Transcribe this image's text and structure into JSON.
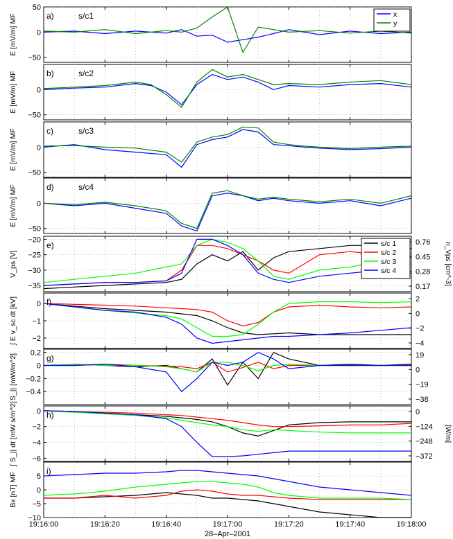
{
  "figure": {
    "date_label": "28–Apr–2001",
    "x_ticks": [
      "19:16:00",
      "19:16:20",
      "19:16:40",
      "19:17:00",
      "19:17:20",
      "19:17:40",
      "19:18:00"
    ]
  },
  "colors": {
    "x": "#0000ff",
    "y": "#008000",
    "sc1": "#000000",
    "sc2": "#ff0000",
    "sc3": "#00ff00",
    "sc4": "#0000ff"
  },
  "chart_data": [
    {
      "type": "line",
      "panel": "a",
      "letter": "a)",
      "sc_label": "s/c1",
      "ylabel": "E [mV/m] MF",
      "ylim": [
        -60,
        50
      ],
      "y_ticks": [
        -50,
        0,
        50
      ],
      "legend": [
        "x",
        "y"
      ],
      "x": [
        0,
        10,
        20,
        30,
        40,
        45,
        50,
        55,
        60,
        65,
        70,
        75,
        80,
        90,
        100,
        110,
        120
      ],
      "series": [
        {
          "name": "x",
          "values": [
            0,
            2,
            -3,
            2,
            -2,
            5,
            -8,
            -6,
            -20,
            -15,
            -10,
            -3,
            5,
            -5,
            2,
            -3,
            0
          ]
        },
        {
          "name": "y",
          "values": [
            2,
            0,
            5,
            -3,
            3,
            0,
            8,
            30,
            50,
            -40,
            10,
            5,
            0,
            3,
            -2,
            2,
            -2
          ]
        }
      ]
    },
    {
      "type": "line",
      "panel": "b",
      "letter": "b)",
      "sc_label": "s/c2",
      "ylabel": "E [mV/m] MF",
      "ylim": [
        -60,
        50
      ],
      "y_ticks": [
        -50,
        0
      ],
      "x": [
        0,
        10,
        20,
        30,
        35,
        40,
        45,
        50,
        55,
        60,
        65,
        70,
        75,
        80,
        90,
        100,
        110,
        120
      ],
      "series": [
        {
          "name": "x",
          "values": [
            0,
            3,
            5,
            12,
            8,
            -5,
            -30,
            10,
            30,
            20,
            25,
            15,
            0,
            8,
            5,
            10,
            12,
            5
          ]
        },
        {
          "name": "y",
          "values": [
            2,
            5,
            8,
            15,
            10,
            -10,
            -35,
            15,
            40,
            25,
            30,
            20,
            10,
            12,
            10,
            15,
            18,
            10
          ]
        }
      ]
    },
    {
      "type": "line",
      "panel": "c",
      "letter": "c)",
      "sc_label": "s/c3",
      "ylabel": "E [mV/m] MF",
      "ylim": [
        -60,
        50
      ],
      "y_ticks": [
        -50,
        0
      ],
      "x": [
        0,
        10,
        20,
        30,
        40,
        45,
        50,
        55,
        60,
        65,
        70,
        75,
        80,
        85,
        90,
        100,
        110,
        120
      ],
      "series": [
        {
          "name": "x",
          "values": [
            0,
            5,
            -5,
            -10,
            -15,
            -40,
            5,
            15,
            20,
            35,
            30,
            5,
            3,
            0,
            -2,
            -5,
            -3,
            0
          ]
        },
        {
          "name": "y",
          "values": [
            2,
            3,
            0,
            -2,
            -10,
            -30,
            10,
            20,
            25,
            40,
            38,
            10,
            5,
            2,
            0,
            -3,
            0,
            2
          ]
        }
      ]
    },
    {
      "type": "line",
      "panel": "d",
      "letter": "d)",
      "sc_label": "s/c4",
      "ylabel": "E [mV/m] MF",
      "ylim": [
        -60,
        50
      ],
      "y_ticks": [
        -50,
        0
      ],
      "x": [
        0,
        10,
        20,
        30,
        40,
        45,
        50,
        55,
        60,
        65,
        70,
        75,
        80,
        90,
        100,
        110,
        120
      ],
      "series": [
        {
          "name": "x",
          "values": [
            0,
            -5,
            0,
            -10,
            -20,
            -45,
            -55,
            15,
            20,
            15,
            5,
            10,
            5,
            0,
            5,
            -5,
            10
          ]
        },
        {
          "name": "y",
          "values": [
            0,
            -3,
            2,
            -5,
            -15,
            -40,
            -50,
            20,
            25,
            15,
            8,
            12,
            8,
            3,
            8,
            0,
            15
          ]
        }
      ]
    },
    {
      "type": "line",
      "panel": "e",
      "letter": "e)",
      "sc_label": "",
      "ylabel": "V_ps [V]",
      "ylim": [
        -37,
        -19
      ],
      "y_ticks": [
        -35,
        -30,
        -25,
        -20
      ],
      "right_label": "n_Vps [cm^-3]",
      "right_ticks": [
        "0.76",
        "0.45",
        "0.28",
        "0.17"
      ],
      "legend": [
        "s/c 1",
        "s/c 2",
        "s/c 3",
        "s/c 4"
      ],
      "x": [
        0,
        10,
        20,
        30,
        40,
        45,
        50,
        55,
        60,
        65,
        70,
        75,
        80,
        90,
        100,
        110,
        120
      ],
      "series": [
        {
          "name": "s/c 1",
          "values": [
            -36,
            -35.5,
            -35,
            -34.5,
            -34,
            -33,
            -28,
            -25,
            -27,
            -24,
            -30,
            -26,
            -24,
            -23,
            -22,
            -22,
            -23
          ]
        },
        {
          "name": "s/c 2",
          "values": [
            -35,
            -34.5,
            -34,
            -34,
            -33.5,
            -30,
            -22,
            -22,
            -23,
            -25,
            -27,
            -30,
            -31,
            -25,
            -24,
            -25,
            -26
          ]
        },
        {
          "name": "s/c 3",
          "values": [
            -34,
            -33,
            -32,
            -31,
            -29,
            -28,
            -22,
            -20,
            -21,
            -23,
            -27,
            -32,
            -33,
            -30,
            -29,
            -27,
            -28
          ]
        },
        {
          "name": "s/c 4",
          "values": [
            -35,
            -34.5,
            -34,
            -34,
            -33.5,
            -31,
            -20,
            -20,
            -22,
            -25,
            -31,
            -33,
            -34,
            -32,
            -31,
            -30,
            -31
          ]
        }
      ]
    },
    {
      "type": "line",
      "panel": "f",
      "letter": "f)",
      "sc_label": "",
      "ylabel": "∫ E v_sc dt [kV]",
      "ylim": [
        -2.6,
        0.6
      ],
      "y_ticks": [
        -2,
        -1,
        0
      ],
      "right_ticks": [
        "2",
        "0",
        "−2",
        "−4"
      ],
      "x": [
        0,
        10,
        20,
        30,
        40,
        45,
        50,
        55,
        60,
        65,
        70,
        75,
        80,
        90,
        100,
        110,
        120
      ],
      "series": [
        {
          "name": "s/c 1",
          "values": [
            0,
            -0.15,
            -0.3,
            -0.4,
            -0.5,
            -0.6,
            -0.7,
            -1.0,
            -1.4,
            -1.7,
            -1.8,
            -1.75,
            -1.7,
            -1.8,
            -1.8,
            -1.8,
            -1.8
          ]
        },
        {
          "name": "s/c 2",
          "values": [
            0,
            -0.05,
            -0.1,
            -0.15,
            -0.25,
            -0.3,
            -0.35,
            -0.5,
            -1.0,
            -1.3,
            -1.1,
            -0.5,
            -0.2,
            -0.1,
            -0.2,
            -0.25,
            -0.2
          ]
        },
        {
          "name": "s/c 3",
          "values": [
            0,
            -0.2,
            -0.4,
            -0.55,
            -0.7,
            -0.9,
            -1.4,
            -1.9,
            -1.9,
            -1.8,
            -1.2,
            -0.5,
            0.0,
            0.1,
            0.1,
            0.05,
            0.1
          ]
        },
        {
          "name": "s/c 4",
          "values": [
            0,
            -0.2,
            -0.4,
            -0.5,
            -0.8,
            -1.2,
            -2.0,
            -2.3,
            -2.2,
            -2.1,
            -2.0,
            -1.9,
            -1.9,
            -1.8,
            -1.7,
            -1.55,
            -1.4
          ]
        }
      ]
    },
    {
      "type": "line",
      "panel": "g",
      "letter": "g)",
      "sc_label": "",
      "ylabel": "S_|| [mW/m^2]",
      "ylim": [
        -0.6,
        0.25
      ],
      "y_ticks": [
        -0.4,
        -0.2,
        0,
        0.2
      ],
      "right_ticks": [
        "19",
        "0",
        "−19",
        "−38"
      ],
      "x": [
        0,
        10,
        20,
        30,
        40,
        45,
        50,
        55,
        60,
        65,
        70,
        75,
        80,
        90,
        100,
        110,
        120
      ],
      "series": [
        {
          "name": "s/c 1",
          "values": [
            0,
            0.02,
            0,
            -0.02,
            0,
            -0.05,
            -0.1,
            0.1,
            -0.3,
            0.05,
            -0.2,
            0.2,
            0.1,
            0,
            0.02,
            0,
            0.02
          ]
        },
        {
          "name": "s/c 2",
          "values": [
            0,
            0,
            0.02,
            0,
            -0.01,
            -0.02,
            -0.05,
            0.05,
            -0.1,
            -0.03,
            0.05,
            -0.05,
            0,
            0,
            0,
            0,
            0
          ]
        },
        {
          "name": "s/c 3",
          "values": [
            0,
            0.02,
            0,
            0,
            -0.02,
            -0.05,
            -0.1,
            0.05,
            0.05,
            0.0,
            -0.08,
            0,
            0.02,
            0,
            0,
            0,
            0
          ]
        },
        {
          "name": "s/c 4",
          "values": [
            0,
            0,
            0.02,
            -0.02,
            -0.1,
            -0.4,
            -0.2,
            0.05,
            0.0,
            0.05,
            0.2,
            0.1,
            -0.05,
            0,
            0,
            0,
            0
          ]
        }
      ]
    },
    {
      "type": "line",
      "panel": "h",
      "letter": "h)",
      "sc_label": "",
      "ylabel": "∫ S_|| dt [mW s/m^2]",
      "ylim": [
        -6.4,
        0.6
      ],
      "y_ticks": [
        -6,
        -4,
        -2,
        0
      ],
      "right_label": "[W/m]",
      "right_ticks": [
        "0",
        "−124",
        "−248",
        "−372"
      ],
      "x": [
        0,
        10,
        20,
        30,
        40,
        45,
        50,
        55,
        60,
        65,
        70,
        75,
        80,
        90,
        100,
        110,
        120
      ],
      "series": [
        {
          "name": "s/c 1",
          "values": [
            0,
            -0.1,
            -0.3,
            -0.5,
            -0.7,
            -0.9,
            -1.1,
            -1.4,
            -2.0,
            -2.8,
            -3.2,
            -2.5,
            -1.8,
            -1.5,
            -1.4,
            -1.4,
            -1.4
          ]
        },
        {
          "name": "s/c 2",
          "values": [
            0,
            -0.1,
            -0.2,
            -0.3,
            -0.5,
            -0.6,
            -0.8,
            -1.0,
            -1.2,
            -1.5,
            -1.8,
            -2.0,
            -2.0,
            -1.9,
            -1.8,
            -1.8,
            -1.6
          ]
        },
        {
          "name": "s/c 3",
          "values": [
            0,
            -0.2,
            -0.4,
            -0.6,
            -0.9,
            -1.2,
            -1.5,
            -1.8,
            -2.0,
            -2.4,
            -2.6,
            -2.4,
            -2.5,
            -2.7,
            -2.8,
            -2.8,
            -2.8
          ]
        },
        {
          "name": "s/c 4",
          "values": [
            0,
            -0.1,
            -0.3,
            -0.5,
            -1.0,
            -2.0,
            -4.0,
            -5.8,
            -5.8,
            -5.7,
            -5.5,
            -5.3,
            -5.1,
            -5.1,
            -5.1,
            -5.1,
            -5.1
          ]
        }
      ]
    },
    {
      "type": "line",
      "panel": "i",
      "letter": "i)",
      "sc_label": "",
      "ylabel": "Bx [nT] MF",
      "ylim": [
        -10,
        10
      ],
      "y_ticks": [
        -10,
        -5,
        0,
        5
      ],
      "x": [
        0,
        10,
        20,
        30,
        40,
        45,
        50,
        55,
        60,
        65,
        70,
        75,
        80,
        90,
        100,
        110,
        120
      ],
      "series": [
        {
          "name": "s/c 1",
          "values": [
            -3,
            -3,
            -2.5,
            -2,
            -1,
            -1.5,
            -2,
            -3,
            -3,
            -3.5,
            -4,
            -5,
            -6,
            -8,
            -9,
            -10,
            -11
          ]
        },
        {
          "name": "s/c 2",
          "values": [
            -3,
            -3,
            -2,
            -3,
            -2,
            -0.5,
            0,
            -0.5,
            -1.5,
            -2,
            -2,
            -2.5,
            -3,
            -3.5,
            -3.5,
            -3.5,
            -3.5
          ]
        },
        {
          "name": "s/c 3",
          "values": [
            -2,
            -1.5,
            -0.5,
            1,
            2,
            2.5,
            3,
            3,
            2.5,
            2,
            1,
            -1,
            -2,
            -3,
            -3,
            -3,
            -3.5
          ]
        },
        {
          "name": "s/c 4",
          "values": [
            5,
            5.5,
            6,
            6,
            6.5,
            7,
            7,
            6.5,
            6,
            5.5,
            5,
            4,
            3,
            1,
            0,
            -1,
            -2
          ]
        }
      ]
    }
  ]
}
